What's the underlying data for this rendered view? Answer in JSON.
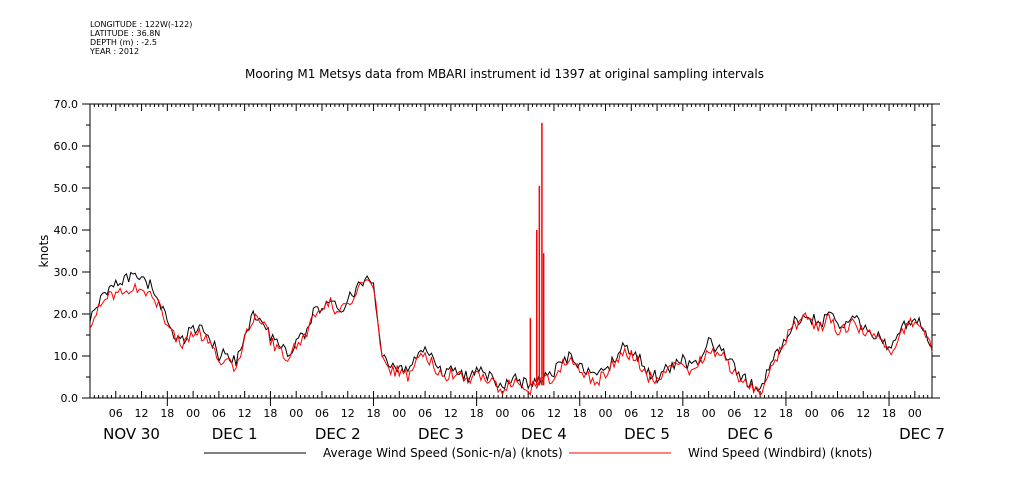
{
  "meta": {
    "longitude": "LONGITUDE : 122W(-122)",
    "latitude": "LATITUDE : 36.8N",
    "depth": "DEPTH (m) : -2.5",
    "year": "YEAR : 2012"
  },
  "chart_data": {
    "type": "line",
    "title": "Mooring M1 Metsys data from MBARI instrument id 1397 at original sampling intervals",
    "ylabel": "knots",
    "xlabel": "",
    "ylim": [
      0,
      70
    ],
    "yticks": [
      0,
      10,
      20,
      30,
      40,
      50,
      60,
      70
    ],
    "xlim_hours": [
      0,
      196
    ],
    "hour_tick_labels": [
      "06",
      "12",
      "18",
      "00",
      "06",
      "12",
      "18",
      "00",
      "06",
      "12",
      "18",
      "00",
      "06",
      "12",
      "18",
      "00",
      "06",
      "12",
      "18",
      "00",
      "06",
      "12",
      "18",
      "00",
      "06",
      "12",
      "18",
      "00",
      "06",
      "12",
      "18",
      "00"
    ],
    "day_labels": [
      "NOV 30",
      "DEC  1",
      "DEC  2",
      "DEC  3",
      "DEC  4",
      "DEC  5",
      "DEC  6",
      "DEC  7"
    ],
    "grid": false,
    "legend_placement": "bottom",
    "colors": {
      "avg": "#000000",
      "windbird": "#ff0000"
    },
    "series": [
      {
        "name": "Average Wind Speed (Sonic-n/a) (knots)",
        "x": [
          0,
          4,
          8,
          10,
          12,
          14,
          16,
          18,
          20,
          22,
          24,
          26,
          28,
          30,
          32,
          34,
          36,
          38,
          40,
          42,
          44,
          46,
          48,
          50,
          52,
          54,
          56,
          58,
          60,
          62,
          64,
          66,
          68,
          70,
          72,
          74,
          76,
          78,
          80,
          82,
          84,
          86,
          88,
          90,
          92,
          94,
          96,
          98,
          100,
          102,
          104,
          106,
          108,
          110,
          112,
          114,
          116,
          118,
          120,
          122,
          124,
          126,
          128,
          130,
          132,
          134,
          136,
          138,
          140,
          142,
          144,
          146,
          148,
          150,
          152,
          154,
          156,
          158,
          160,
          162,
          164,
          166,
          168,
          170,
          172,
          174,
          176,
          178,
          180,
          182,
          184,
          186,
          188,
          190,
          192,
          194,
          196
        ],
        "y": [
          19,
          26,
          28,
          30,
          28,
          27,
          23,
          18,
          15,
          14,
          17,
          16,
          14,
          10,
          11,
          8,
          15,
          20,
          19,
          15,
          12,
          11,
          13,
          15,
          20,
          22,
          24,
          21,
          23,
          26,
          28,
          27,
          11,
          8,
          7,
          6,
          10,
          11,
          9,
          6,
          7,
          6,
          5,
          7,
          6,
          4,
          3,
          5,
          4,
          3,
          4,
          5,
          6,
          9,
          10,
          8,
          6,
          5,
          7,
          9,
          12,
          11,
          9,
          6,
          5,
          7,
          8,
          9,
          7,
          10,
          13,
          12,
          10,
          7,
          5,
          3,
          1,
          8,
          11,
          15,
          18,
          20,
          19,
          18,
          20,
          17,
          18,
          19,
          17,
          16,
          14,
          12,
          15,
          18,
          19,
          17,
          12
        ]
      },
      {
        "name": "Wind Speed (Windbird) (knots)",
        "x": [
          0,
          4,
          8,
          10,
          12,
          14,
          16,
          18,
          20,
          22,
          24,
          26,
          28,
          30,
          32,
          34,
          36,
          38,
          40,
          42,
          44,
          46,
          48,
          50,
          52,
          54,
          56,
          58,
          60,
          62,
          64,
          66,
          68,
          70,
          72,
          74,
          76,
          78,
          80,
          82,
          84,
          86,
          88,
          90,
          92,
          94,
          96,
          98,
          100,
          102,
          104,
          106,
          108,
          110,
          112,
          114,
          116,
          118,
          120,
          122,
          124,
          126,
          128,
          130,
          132,
          134,
          136,
          138,
          140,
          142,
          144,
          146,
          148,
          150,
          152,
          154,
          156,
          158,
          160,
          162,
          164,
          166,
          168,
          170,
          172,
          174,
          176,
          178,
          180,
          182,
          184,
          186,
          188,
          190,
          192,
          194,
          196
        ],
        "y": [
          18,
          24,
          25,
          27,
          26,
          25,
          22,
          17,
          14,
          13,
          16,
          15,
          13,
          9,
          10,
          7,
          14,
          19,
          18,
          14,
          11,
          10,
          12,
          14,
          19,
          21,
          23,
          20,
          22,
          25,
          27,
          26,
          10,
          7,
          6,
          5,
          9,
          10,
          8,
          5,
          6,
          5,
          4,
          6,
          5,
          3,
          2,
          4,
          3,
          2,
          3,
          4,
          5,
          8,
          9,
          7,
          5,
          4,
          6,
          8,
          11,
          10,
          8,
          5,
          4,
          6,
          7,
          8,
          6,
          9,
          12,
          11,
          9,
          6,
          4,
          2,
          0.5,
          7,
          10,
          14,
          17,
          19,
          18,
          17,
          19,
          16,
          17,
          18,
          16,
          15,
          13,
          11,
          14,
          17,
          18,
          16,
          11
        ]
      }
    ],
    "spikes": {
      "series": "Wind Speed (Windbird) (knots)",
      "x": [
        102.5,
        104.0,
        104.6,
        105.2,
        105.6
      ],
      "y": [
        19,
        40,
        50.5,
        65.5,
        34.5
      ]
    }
  }
}
